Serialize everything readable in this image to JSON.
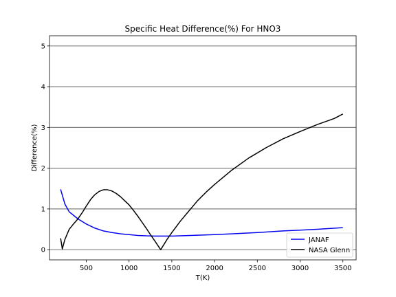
{
  "chart_data": {
    "type": "line",
    "title": "Specific Heat Difference(%) For HNO3",
    "xlabel": "T(K)",
    "ylabel": "Difference(%)",
    "xlim": [
      70,
      3655
    ],
    "ylim": [
      -0.25,
      5.25
    ],
    "xticks": [
      500,
      1000,
      1500,
      2000,
      2500,
      3000,
      3500
    ],
    "yticks": [
      0,
      1,
      2,
      3,
      4,
      5
    ],
    "grid": "horizontal",
    "legend_position": "lower-right",
    "colors": {
      "JANAF": "#0000ee",
      "NASA Glenn": "#000000",
      "grid": "#808080"
    },
    "series": [
      {
        "name": "JANAF",
        "x": [
          200,
          250,
          300,
          400,
          500,
          600,
          700,
          800,
          900,
          1000,
          1100,
          1200,
          1300,
          1400,
          1500,
          1600,
          1800,
          2000,
          2200,
          2500,
          2800,
          3000,
          3200,
          3500
        ],
        "y": [
          1.48,
          1.12,
          0.93,
          0.76,
          0.63,
          0.53,
          0.46,
          0.42,
          0.39,
          0.37,
          0.35,
          0.34,
          0.335,
          0.335,
          0.335,
          0.34,
          0.355,
          0.37,
          0.39,
          0.42,
          0.46,
          0.48,
          0.5,
          0.54
        ]
      },
      {
        "name": "NASA Glenn",
        "x": [
          200,
          220,
          250,
          300,
          350,
          400,
          450,
          500,
          550,
          600,
          650,
          700,
          750,
          800,
          850,
          900,
          950,
          1000,
          1050,
          1100,
          1150,
          1200,
          1250,
          1300,
          1370,
          1450,
          1500,
          1600,
          1700,
          1800,
          1900,
          2000,
          2200,
          2400,
          2600,
          2800,
          3000,
          3200,
          3400,
          3500
        ],
        "y": [
          0.28,
          0.02,
          0.25,
          0.5,
          0.63,
          0.75,
          0.9,
          1.07,
          1.23,
          1.35,
          1.43,
          1.47,
          1.47,
          1.44,
          1.38,
          1.3,
          1.2,
          1.1,
          0.97,
          0.83,
          0.68,
          0.53,
          0.37,
          0.22,
          0.0,
          0.27,
          0.42,
          0.7,
          0.95,
          1.2,
          1.41,
          1.6,
          1.95,
          2.25,
          2.5,
          2.72,
          2.9,
          3.07,
          3.22,
          3.33
        ]
      }
    ]
  }
}
